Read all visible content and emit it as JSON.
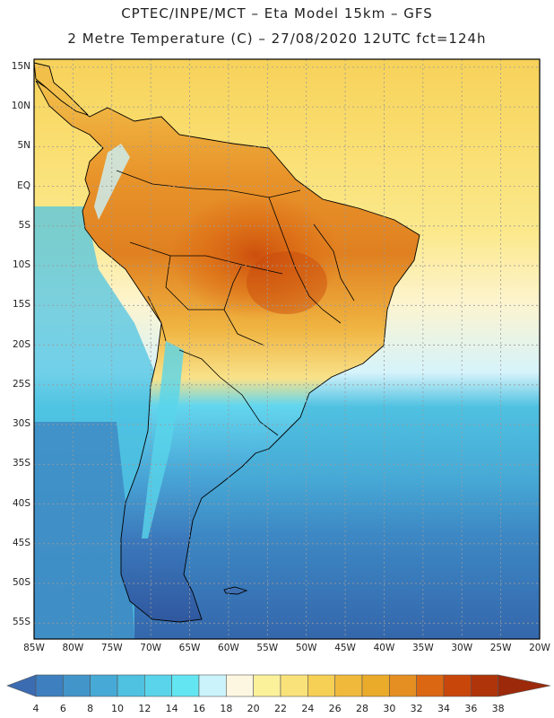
{
  "title": {
    "line1": "CPTEC/INPE/MCT –  Eta Model 15km – GFS",
    "line2": "2 Metre Temperature (C) – 27/08/2020 12UTC fct=124h"
  },
  "latitude_labels": [
    "15N",
    "10N",
    "5N",
    "EQ",
    "5S",
    "10S",
    "15S",
    "20S",
    "25S",
    "30S",
    "35S",
    "40S",
    "45S",
    "50S",
    "55S"
  ],
  "longitude_labels": [
    "85W",
    "80W",
    "75W",
    "70W",
    "65W",
    "60W",
    "55W",
    "50W",
    "45W",
    "40W",
    "35W",
    "30W",
    "25W",
    "20W"
  ],
  "colorbar": {
    "labels": [
      "4",
      "6",
      "8",
      "10",
      "12",
      "14",
      "16",
      "18",
      "20",
      "22",
      "24",
      "26",
      "28",
      "30",
      "32",
      "34",
      "36",
      "38"
    ],
    "colors": [
      "#3b6bb0",
      "#3d7fbf",
      "#4195c9",
      "#47aad6",
      "#4fc1e1",
      "#59d4ea",
      "#63e6f2",
      "#cbf3fb",
      "#fdf7e1",
      "#fbf19b",
      "#fae27a",
      "#f6cf55",
      "#f0b93b",
      "#ebab2a",
      "#e58f23",
      "#db6712",
      "#c8460a",
      "#b0340a",
      "#9c2a0a"
    ]
  },
  "chart_data": {
    "type": "heatmap",
    "title": "2 Metre Temperature (C)",
    "model": "Eta Model 15km – GFS",
    "init_time": "27/08/2020 12UTC",
    "forecast_hour": "124h",
    "lon_range": [
      -85,
      -20
    ],
    "lat_range": [
      -57,
      16
    ],
    "colorbar_range_c": [
      4,
      38
    ],
    "colorbar_step_c": 2
  }
}
